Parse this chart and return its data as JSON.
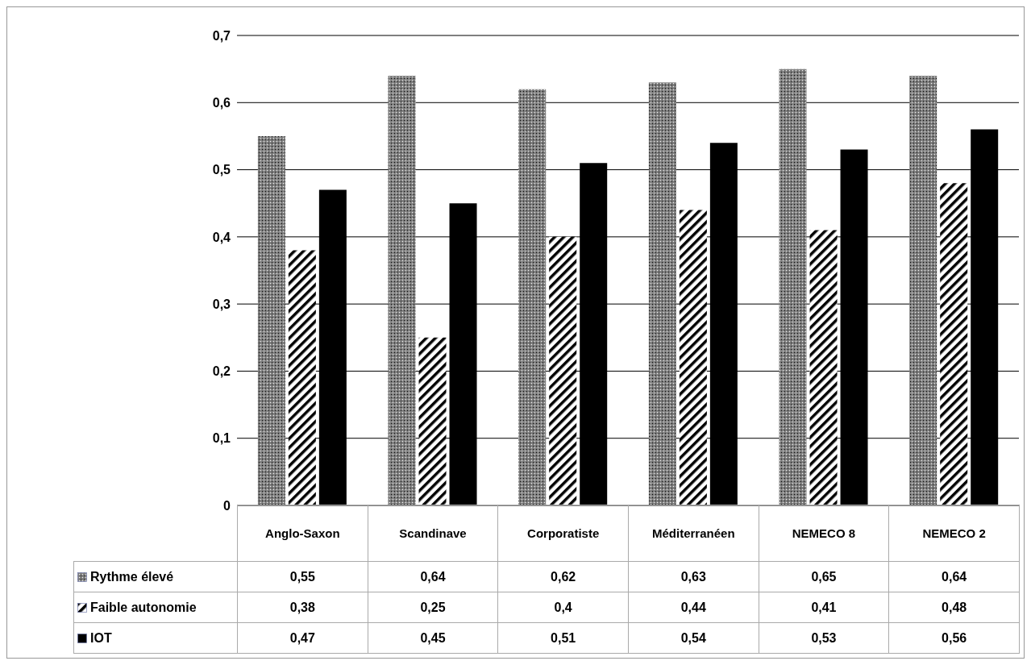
{
  "chart_data": {
    "type": "bar",
    "categories": [
      "Anglo-Saxon",
      "Scandinave",
      "Corporatiste",
      "Méditerranéen",
      "NEMECO 8",
      "NEMECO 2"
    ],
    "series": [
      {
        "name": "Rythme élevé",
        "color": "#808080",
        "values": [
          0.55,
          0.64,
          0.62,
          0.63,
          0.65,
          0.64
        ],
        "value_labels": [
          "0,55",
          "0,64",
          "0,62",
          "0,63",
          "0,65",
          "0,64"
        ]
      },
      {
        "name": "Faible autonomie",
        "color": "#ffffff",
        "values": [
          0.38,
          0.25,
          0.4,
          0.44,
          0.41,
          0.48
        ],
        "value_labels": [
          "0,38",
          "0,25",
          "0,4",
          "0,44",
          "0,41",
          "0,48"
        ]
      },
      {
        "name": "IOT",
        "color": "#000000",
        "values": [
          0.47,
          0.45,
          0.51,
          0.54,
          0.53,
          0.56
        ],
        "value_labels": [
          "0,47",
          "0,45",
          "0,51",
          "0,54",
          "0,53",
          "0,56"
        ]
      }
    ],
    "ylim": [
      0,
      0.7
    ],
    "yticks": [
      0,
      {
        "value": 0.1,
        "label": "0,1"
      },
      {
        "value": 0.2,
        "label": "0,2"
      },
      {
        "value": 0.3,
        "label": "0,3"
      },
      {
        "value": 0.4,
        "label": "0,4"
      },
      {
        "value": 0.5,
        "label": "0,5"
      },
      {
        "value": 0.6,
        "label": "0,6"
      },
      {
        "value": 0.7,
        "label": "0,7"
      }
    ],
    "grid": "y",
    "legend": "bottom"
  }
}
